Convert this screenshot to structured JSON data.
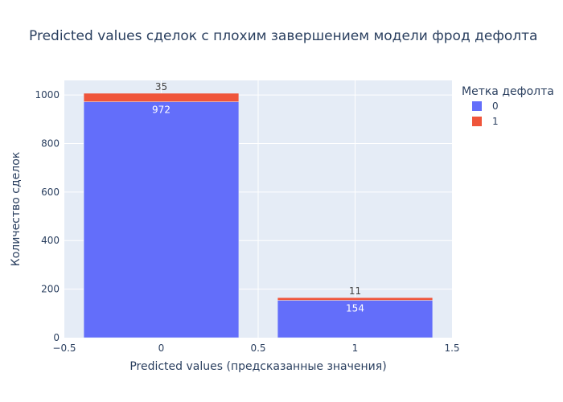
{
  "chart_data": {
    "type": "bar",
    "barmode": "stack",
    "title": "Predicted values сделок с плохим завершением модели фрод дефолта",
    "xlabel": "Predicted values (предсказанные значения)",
    "ylabel": "Количество сделок",
    "x": [
      0,
      1
    ],
    "xlim": [
      -0.5,
      1.5
    ],
    "ylim": [
      0,
      1060
    ],
    "xticks": [
      "−0.5",
      "0",
      "0.5",
      "1",
      "1.5"
    ],
    "yticks": [
      0,
      200,
      400,
      600,
      800,
      1000
    ],
    "grid": true,
    "legend": {
      "title": "Метка дефолта",
      "placement": "top-right"
    },
    "series": [
      {
        "name": "0",
        "values": [
          972,
          154
        ],
        "color": "#636efa",
        "label_position": "inside"
      },
      {
        "name": "1",
        "values": [
          35,
          11
        ],
        "color": "#ef553b",
        "label_position": "outside"
      }
    ]
  }
}
